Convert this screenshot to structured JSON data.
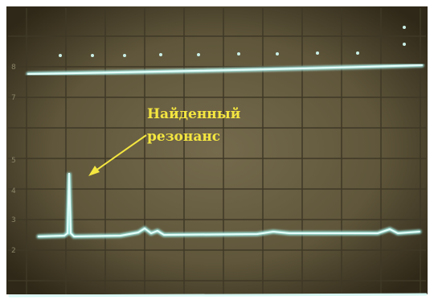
{
  "scale_labels": [
    "8",
    "7",
    "5",
    "4",
    "3",
    "2"
  ],
  "annotation": {
    "lines": [
      "Найденный",
      "резонанс"
    ]
  }
}
